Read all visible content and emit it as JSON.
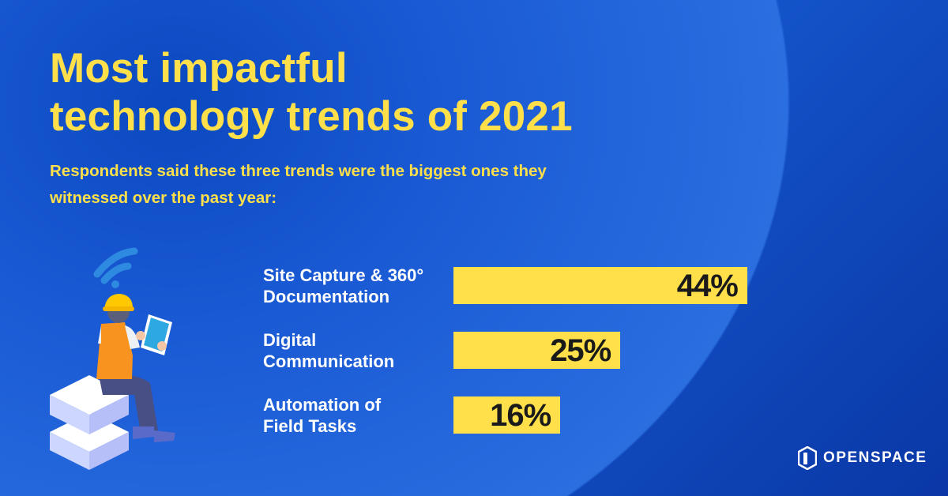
{
  "title_line1": "Most impactful",
  "title_line2": "technology trends of 2021",
  "subtitle": "Respondents said these three trends were the biggest ones they witnessed over the past year:",
  "brand": "OPENSPACE",
  "colors": {
    "background": "#0a37a6",
    "accent": "#ffe04a",
    "text": "#ffffff"
  },
  "chart_data": {
    "type": "bar",
    "orientation": "horizontal",
    "categories": [
      [
        "Site Capture & 360°",
        "Documentation"
      ],
      [
        "Digital",
        "Communication"
      ],
      [
        "Automation of",
        "Field Tasks"
      ]
    ],
    "values": [
      44,
      25,
      16
    ],
    "value_labels": [
      "44%",
      "25%",
      "16%"
    ],
    "unit": "%",
    "grid": false
  }
}
